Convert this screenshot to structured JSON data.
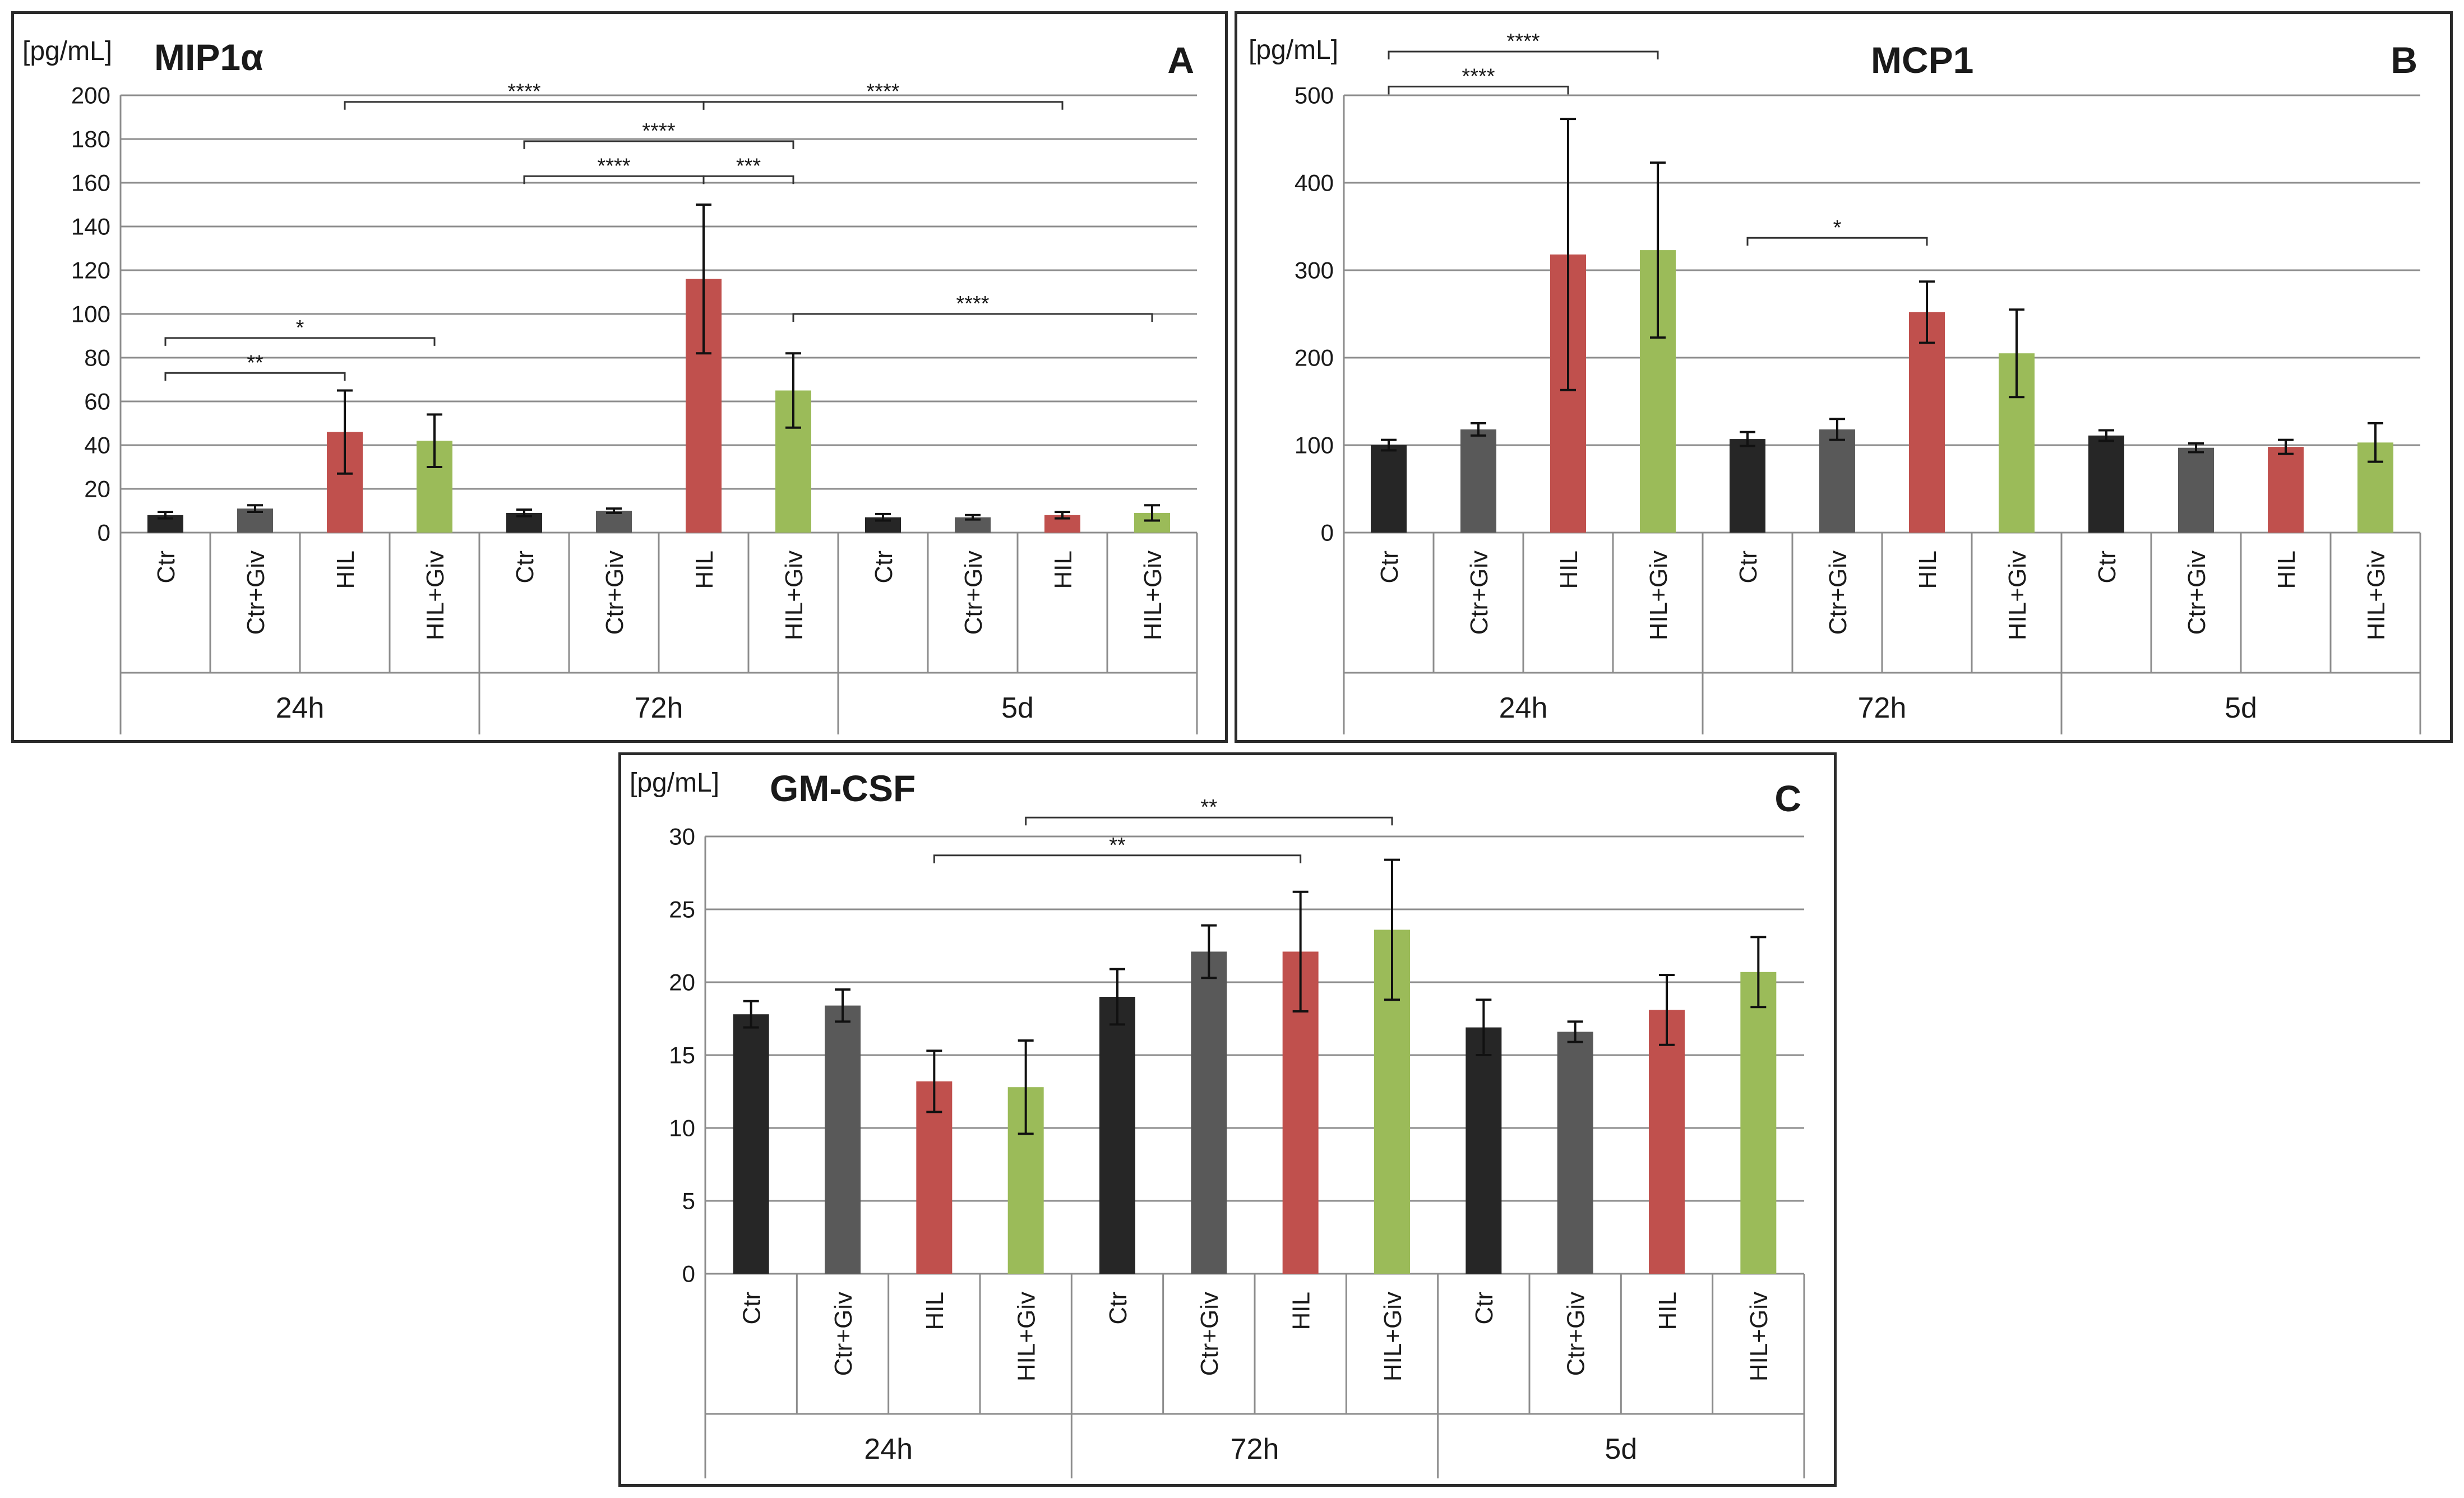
{
  "figure": {
    "unit_label": "[pg/mL]",
    "colors": {
      "ctr": "#262626",
      "ctr_giv": "#595959",
      "hil": "#c0504d",
      "hil_giv": "#9bbb59",
      "grid": "#8c8c8c",
      "axis": "#8c8c8c",
      "text": "#1a1a1a"
    }
  },
  "chart_data": [
    {
      "id": "A",
      "type": "bar",
      "panel_letter": "A",
      "title": "MIP1α",
      "ylabel": "[pg/mL]",
      "ylim": [
        0,
        200
      ],
      "yticks": [
        "0",
        "20",
        "40",
        "60",
        "80",
        "100",
        "120",
        "140",
        "160",
        "180",
        "200"
      ],
      "groups": [
        "24h",
        "72h",
        "5d"
      ],
      "categories": [
        "Ctr",
        "Ctr+Giv",
        "HIL",
        "HIL+Giv"
      ],
      "series": [
        {
          "group": "24h",
          "values": [
            8,
            11,
            46,
            42
          ],
          "err": [
            1.5,
            1.5,
            19,
            12
          ]
        },
        {
          "group": "72h",
          "values": [
            9,
            10,
            116,
            65
          ],
          "err": [
            1.5,
            1,
            34,
            17
          ]
        },
        {
          "group": "5d",
          "values": [
            7,
            7,
            8,
            9
          ],
          "err": [
            1.5,
            1,
            1.5,
            3.5
          ]
        }
      ],
      "annotations": [
        {
          "label": "****",
          "from": 2,
          "to": 6,
          "y": 197
        },
        {
          "label": "****",
          "from": 6,
          "to": 10,
          "y": 197
        },
        {
          "label": "****",
          "from": 4,
          "to": 7,
          "y": 179
        },
        {
          "label": "****",
          "from": 4,
          "to": 6,
          "y": 163
        },
        {
          "label": "***",
          "from": 6,
          "to": 7,
          "y": 163
        },
        {
          "label": "****",
          "from": 7,
          "to": 11,
          "y": 100
        },
        {
          "label": "*",
          "from": 0,
          "to": 3,
          "y": 89
        },
        {
          "label": "**",
          "from": 0,
          "to": 2,
          "y": 73
        }
      ]
    },
    {
      "id": "B",
      "type": "bar",
      "panel_letter": "B",
      "title": "MCP1",
      "ylabel": "[pg/mL]",
      "ylim": [
        0,
        500
      ],
      "yticks": [
        "0",
        "100",
        "200",
        "300",
        "400",
        "500"
      ],
      "groups": [
        "24h",
        "72h",
        "5d"
      ],
      "categories": [
        "Ctr",
        "Ctr+Giv",
        "HIL",
        "HIL+Giv"
      ],
      "series": [
        {
          "group": "24h",
          "values": [
            100,
            118,
            318,
            323
          ],
          "err": [
            6,
            7,
            155,
            100
          ]
        },
        {
          "group": "72h",
          "values": [
            107,
            118,
            252,
            205
          ],
          "err": [
            8,
            12,
            35,
            50
          ]
        },
        {
          "group": "5d",
          "values": [
            111,
            97,
            98,
            103
          ],
          "err": [
            6,
            5,
            8,
            22
          ]
        }
      ],
      "annotations": [
        {
          "label": "****",
          "from": 0,
          "to": 3,
          "y": 550
        },
        {
          "label": "****",
          "from": 0,
          "to": 2,
          "y": 510
        },
        {
          "label": "*",
          "from": 4,
          "to": 6,
          "y": 337
        }
      ]
    },
    {
      "id": "C",
      "type": "bar",
      "panel_letter": "C",
      "title": "GM-CSF",
      "ylabel": "[pg/mL]",
      "ylim": [
        0,
        30
      ],
      "yticks": [
        "0",
        "5",
        "10",
        "15",
        "20",
        "25",
        "30"
      ],
      "groups": [
        "24h",
        "72h",
        "5d"
      ],
      "categories": [
        "Ctr",
        "Ctr+Giv",
        "HIL",
        "HIL+Giv"
      ],
      "series": [
        {
          "group": "24h",
          "values": [
            17.8,
            18.4,
            13.2,
            12.8
          ],
          "err": [
            0.9,
            1.1,
            2.1,
            3.2
          ]
        },
        {
          "group": "72h",
          "values": [
            19.0,
            22.1,
            22.1,
            23.6
          ],
          "err": [
            1.9,
            1.8,
            4.1,
            4.8
          ]
        },
        {
          "group": "5d",
          "values": [
            16.9,
            16.6,
            18.1,
            20.7
          ],
          "err": [
            1.9,
            0.7,
            2.4,
            2.4
          ]
        }
      ],
      "annotations": [
        {
          "label": "**",
          "from": 3,
          "to": 7,
          "y": 31.3
        },
        {
          "label": "**",
          "from": 2,
          "to": 6,
          "y": 28.7
        }
      ]
    }
  ]
}
